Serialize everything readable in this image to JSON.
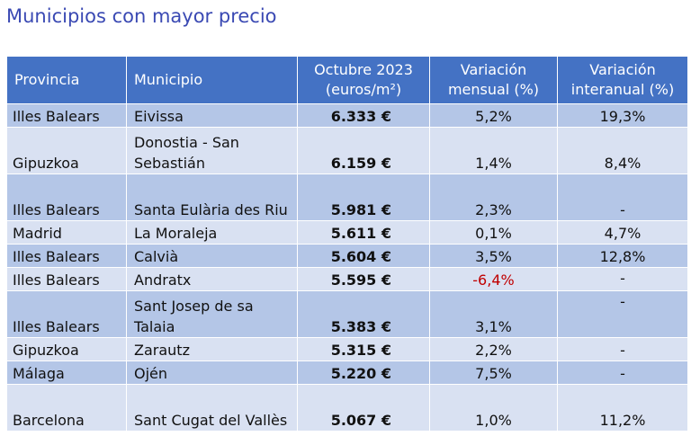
{
  "title": "Municipios con mayor precio",
  "headers": {
    "provincia": "Provincia",
    "municipio": "Municipio",
    "precio_l1": "Octubre 2023",
    "precio_l2": "(euros/m²)",
    "var_mensual_l1": "Variación",
    "var_mensual_l2": "mensual (%)",
    "var_interanual_l1": "Variación",
    "var_interanual_l2": "interanual (%)"
  },
  "rows": [
    {
      "provincia": "Illes Balears",
      "municipio": "Eivissa",
      "precio": "6.333 €",
      "mensual": "5,2%",
      "interanual": "19,3%"
    },
    {
      "provincia": "Gipuzkoa",
      "municipio": "Donostia - San Sebastián",
      "precio": "6.159 €",
      "mensual": "1,4%",
      "interanual": "8,4%"
    },
    {
      "provincia": "Illes Balears",
      "municipio": "Santa Eulària des Riu",
      "precio": "5.981 €",
      "mensual": "2,3%",
      "interanual": "-"
    },
    {
      "provincia": "Madrid",
      "municipio": "La Moraleja",
      "precio": "5.611 €",
      "mensual": "0,1%",
      "interanual": "4,7%"
    },
    {
      "provincia": "Illes Balears",
      "municipio": "Calvià",
      "precio": "5.604 €",
      "mensual": "3,5%",
      "interanual": "12,8%"
    },
    {
      "provincia": "Illes Balears",
      "municipio": "Andratx",
      "precio": "5.595 €",
      "mensual": "-6,4%",
      "interanual": "-"
    },
    {
      "provincia": "Illes Balears",
      "municipio": "Sant Josep de sa Talaia",
      "precio": "5.383 €",
      "mensual": "3,1%",
      "interanual": "-"
    },
    {
      "provincia": "Gipuzkoa",
      "municipio": "Zarautz",
      "precio": "5.315 €",
      "mensual": "2,2%",
      "interanual": "-"
    },
    {
      "provincia": "Málaga",
      "municipio": "Ojén",
      "precio": "5.220 €",
      "mensual": "7,5%",
      "interanual": "-"
    },
    {
      "provincia": "Barcelona",
      "municipio": "Sant Cugat del Vallès",
      "precio": "5.067 €",
      "mensual": "1,0%",
      "interanual": "11,2%"
    }
  ],
  "colors": {
    "title": "#3a49b3",
    "header_bg": "#4472c4",
    "row_dark": "#b4c6e7",
    "row_light": "#d9e1f2",
    "negative": "#c00000"
  }
}
